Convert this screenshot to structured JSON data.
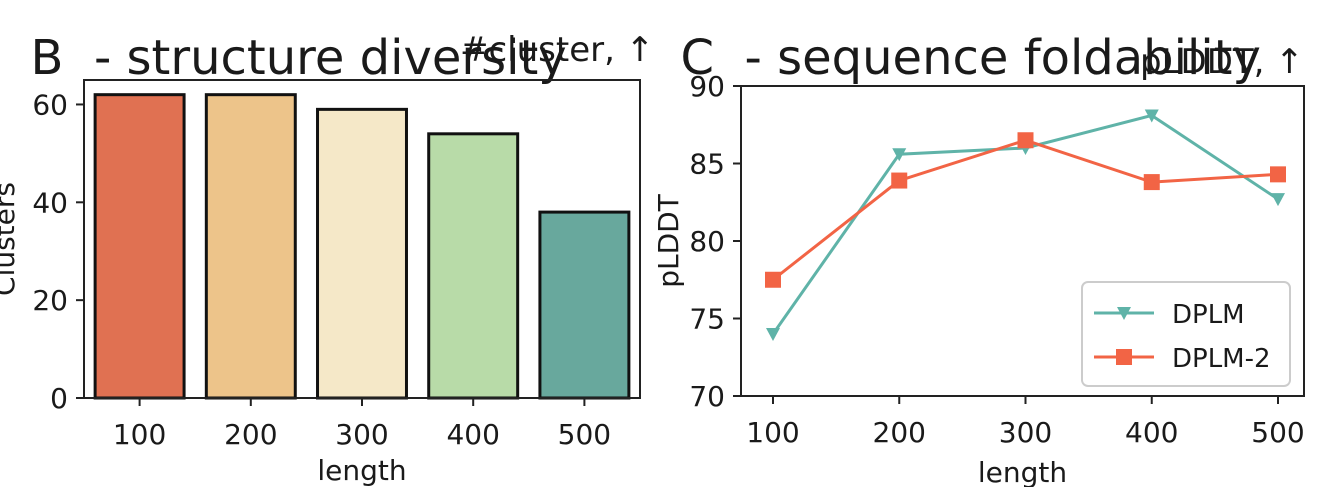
{
  "panel_b": {
    "letter": "B",
    "heading": "- structure diversity",
    "metric": "#cluster, ↑"
  },
  "panel_c": {
    "letter": "C",
    "heading": "- sequence foldability",
    "metric": "pLDDT, ↑"
  },
  "chart_data": [
    {
      "type": "bar",
      "categories": [
        "100",
        "200",
        "300",
        "400",
        "500"
      ],
      "values": [
        62,
        62,
        59,
        54,
        38
      ],
      "colors": [
        "#e07152",
        "#edc48a",
        "#f5e8c8",
        "#b8dba8",
        "#68a89d"
      ],
      "xlabel": "length",
      "ylabel": "Clusters",
      "ylim": [
        0,
        65
      ],
      "yticks": [
        0,
        20,
        40,
        60
      ],
      "grid": false
    },
    {
      "type": "line",
      "x": [
        100,
        200,
        300,
        400,
        500
      ],
      "xticks": [
        "100",
        "200",
        "300",
        "400",
        "500"
      ],
      "series": [
        {
          "name": "DPLM",
          "values": [
            74.0,
            85.6,
            86.0,
            88.1,
            82.7
          ],
          "color": "#5fb3a8",
          "marker": "triangle-down"
        },
        {
          "name": "DPLM-2",
          "values": [
            77.5,
            83.9,
            86.5,
            83.8,
            84.3
          ],
          "color": "#f26445",
          "marker": "square"
        }
      ],
      "xlabel": "length",
      "ylabel": "pLDDT",
      "ylim": [
        70,
        90
      ],
      "yticks": [
        70,
        75,
        80,
        85,
        90
      ],
      "legend": "bottom-right",
      "grid": false
    }
  ]
}
